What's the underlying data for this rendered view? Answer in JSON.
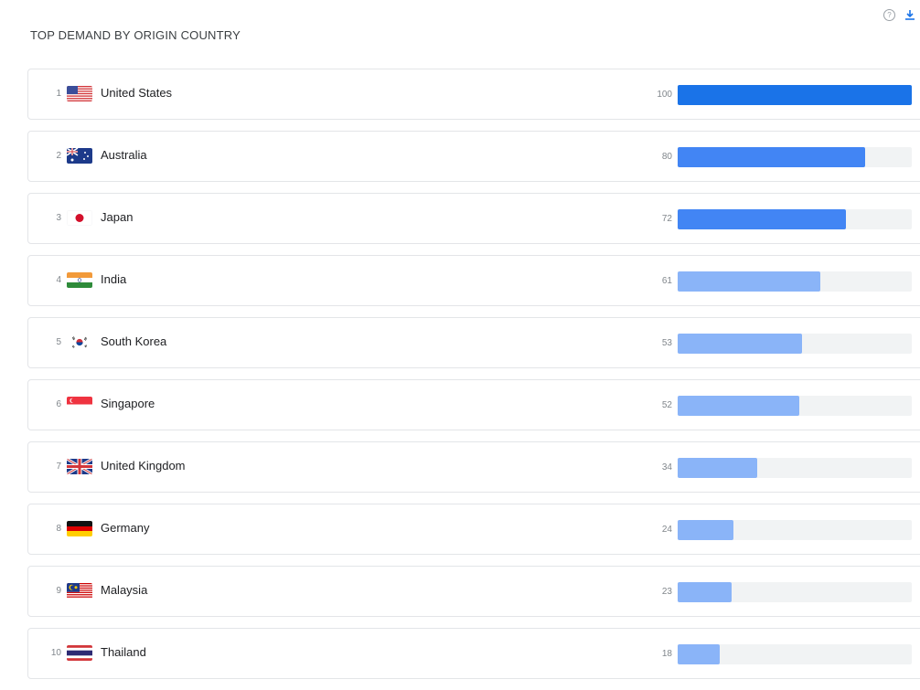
{
  "header": {
    "title": "TOP DEMAND BY ORIGIN COUNTRY",
    "help_icon": "help-circle-icon",
    "download_icon": "download-icon",
    "help_glyph": "?"
  },
  "colors": {
    "bar_dark": "#1a73e8",
    "bar_mid": "#4285f4",
    "bar_light": "#8ab4f8",
    "track": "#f1f3f4"
  },
  "max_value": 100,
  "countries": [
    {
      "rank": "1",
      "name": "United States",
      "value": "100",
      "flag": "us"
    },
    {
      "rank": "2",
      "name": "Australia",
      "value": "80",
      "flag": "au"
    },
    {
      "rank": "3",
      "name": "Japan",
      "value": "72",
      "flag": "jp"
    },
    {
      "rank": "4",
      "name": "India",
      "value": "61",
      "flag": "in"
    },
    {
      "rank": "5",
      "name": "South Korea",
      "value": "53",
      "flag": "kr"
    },
    {
      "rank": "6",
      "name": "Singapore",
      "value": "52",
      "flag": "sg"
    },
    {
      "rank": "7",
      "name": "United Kingdom",
      "value": "34",
      "flag": "gb"
    },
    {
      "rank": "8",
      "name": "Germany",
      "value": "24",
      "flag": "de"
    },
    {
      "rank": "9",
      "name": "Malaysia",
      "value": "23",
      "flag": "my"
    },
    {
      "rank": "10",
      "name": "Thailand",
      "value": "18",
      "flag": "th"
    }
  ]
}
